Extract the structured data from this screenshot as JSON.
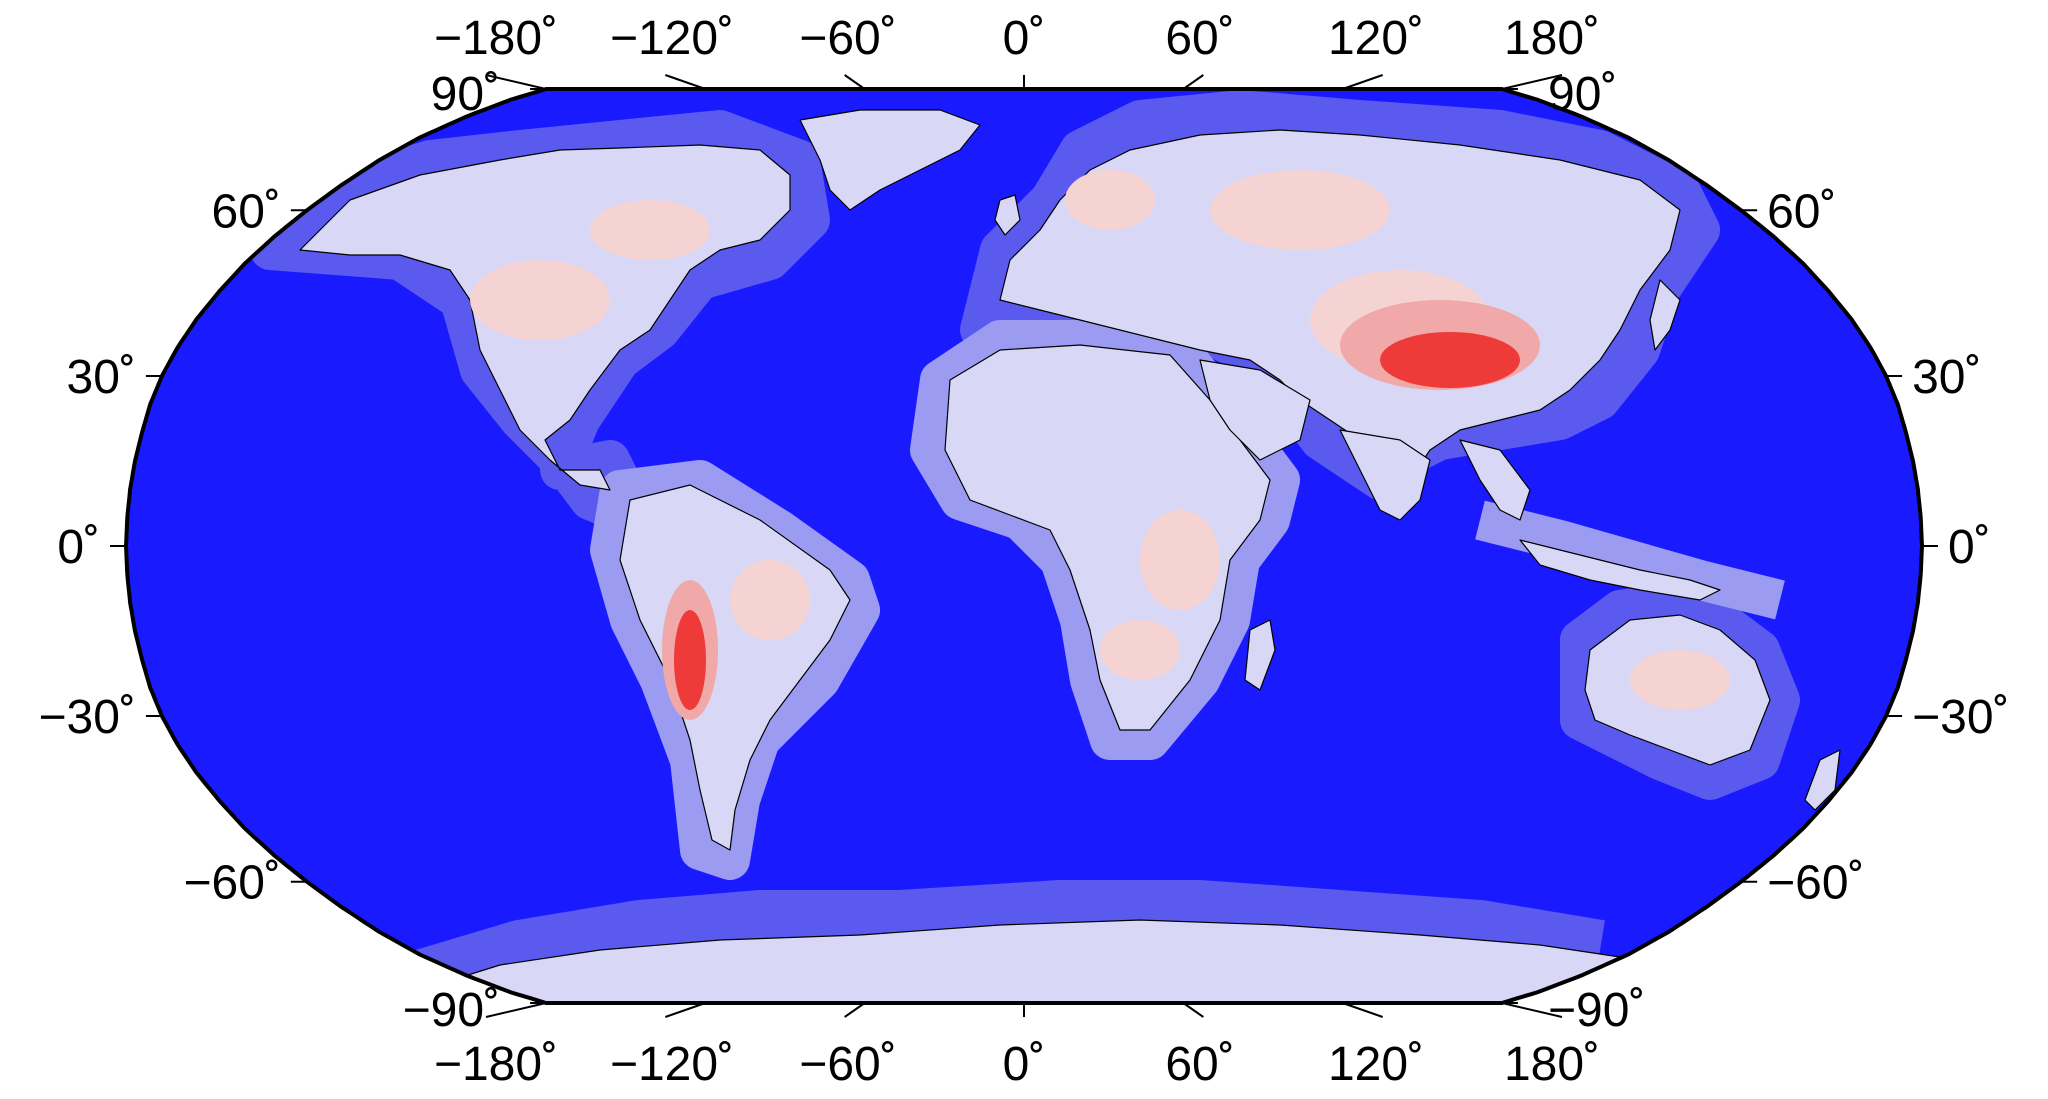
{
  "map": {
    "projection": "Robinson",
    "longitude_range": [
      -180,
      180
    ],
    "latitude_range": [
      -90,
      90
    ],
    "colors": {
      "ocean": "#1a1aff",
      "shelf": "#5a5aee",
      "shelf_light": "#9b9bf2",
      "land_low": "#d8d8f6",
      "land_pink": "#f6d3d3",
      "land_mid": "#f0a8a8",
      "land_high": "#ef3a3a",
      "coast": "#000000",
      "border": "#000000"
    },
    "top_lon_labels": [
      "−180˚",
      "−120˚",
      "−60˚",
      "0˚",
      "60˚",
      "120˚",
      "180˚"
    ],
    "bottom_lon_labels": [
      "−180˚",
      "−120˚",
      "−60˚",
      "0˚",
      "60˚",
      "120˚",
      "180˚"
    ],
    "left_lat_labels": [
      "90˚",
      "60˚",
      "30˚",
      "0˚",
      "−30˚",
      "−60˚",
      "−90˚"
    ],
    "right_lat_labels": [
      "90˚",
      "60˚",
      "30˚",
      "0˚",
      "−30˚",
      "−60˚",
      "−90˚"
    ]
  }
}
